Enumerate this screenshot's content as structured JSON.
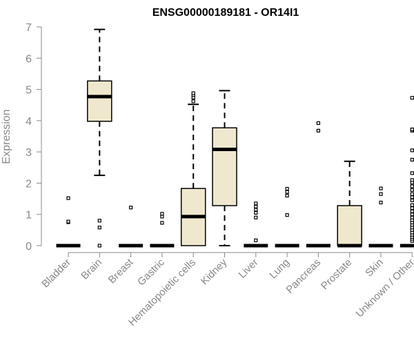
{
  "chart_data": {
    "type": "boxplot",
    "title": "ENSG00000189181 - OR14I1",
    "xlabel": "",
    "ylabel": "Expression",
    "ylim": [
      0,
      7
    ],
    "yticks": [
      0,
      1,
      2,
      3,
      4,
      5,
      6,
      7
    ],
    "grid": false,
    "legend": "none",
    "box_fill": "#efe8cf",
    "categories": [
      "Bladder",
      "Brain",
      "Breast",
      "Gastric",
      "Hematopoietic cells",
      "Kidney",
      "Liver",
      "Lung",
      "Pancreas",
      "Prostate",
      "Skin",
      "Unknown / Other"
    ],
    "boxes": [
      {
        "category": "Bladder",
        "whisker_low": 0,
        "q1": 0,
        "median": 0,
        "q3": 0,
        "whisker_high": 0,
        "outliers": [
          0.75,
          0.77,
          1.52
        ]
      },
      {
        "category": "Brain",
        "whisker_low": 2.25,
        "q1": 3.98,
        "median": 4.77,
        "q3": 5.27,
        "whisker_high": 6.92,
        "outliers": [
          0.0,
          0.58,
          0.8
        ]
      },
      {
        "category": "Breast",
        "whisker_low": 0,
        "q1": 0,
        "median": 0,
        "q3": 0,
        "whisker_high": 0,
        "outliers": [
          1.22
        ]
      },
      {
        "category": "Gastric",
        "whisker_low": 0,
        "q1": 0,
        "median": 0,
        "q3": 0,
        "whisker_high": 0,
        "outliers": [
          0.73,
          0.93,
          1.02
        ]
      },
      {
        "category": "Hematopoietic cells",
        "whisker_low": 0,
        "q1": 0,
        "median": 0.93,
        "q3": 1.83,
        "whisker_high": 4.52,
        "outliers": [
          4.62,
          4.74,
          4.82,
          4.88
        ]
      },
      {
        "category": "Kidney",
        "whisker_low": 0,
        "q1": 1.28,
        "median": 3.08,
        "q3": 3.77,
        "whisker_high": 4.96,
        "outliers": []
      },
      {
        "category": "Liver",
        "whisker_low": 0,
        "q1": 0,
        "median": 0,
        "q3": 0,
        "whisker_high": 0,
        "outliers": [
          0.17,
          0.9,
          1.05,
          1.15,
          1.25,
          1.35
        ]
      },
      {
        "category": "Lung",
        "whisker_low": 0,
        "q1": 0,
        "median": 0,
        "q3": 0,
        "whisker_high": 0,
        "outliers": [
          0.98,
          1.6,
          1.72,
          1.82
        ]
      },
      {
        "category": "Pancreas",
        "whisker_low": 0,
        "q1": 0,
        "median": 0,
        "q3": 0,
        "whisker_high": 0,
        "outliers": [
          3.68,
          3.92
        ]
      },
      {
        "category": "Prostate",
        "whisker_low": 0,
        "q1": 0,
        "median": 0,
        "q3": 1.28,
        "whisker_high": 2.7,
        "outliers": []
      },
      {
        "category": "Skin",
        "whisker_low": 0,
        "q1": 0,
        "median": 0,
        "q3": 0,
        "whisker_high": 0,
        "outliers": [
          1.38,
          1.65,
          1.83
        ]
      },
      {
        "category": "Unknown / Other",
        "whisker_low": 0,
        "q1": 0,
        "median": 0,
        "q3": 0,
        "whisker_high": 0,
        "outliers": [
          0.15,
          0.22,
          0.28,
          0.35,
          0.42,
          0.5,
          0.58,
          0.66,
          0.74,
          0.82,
          0.9,
          1.0,
          1.1,
          1.2,
          1.3,
          1.45,
          1.55,
          1.65,
          1.78,
          1.9,
          2.02,
          2.1,
          2.32,
          2.75,
          3.05,
          3.68,
          3.72,
          4.73
        ]
      }
    ]
  }
}
